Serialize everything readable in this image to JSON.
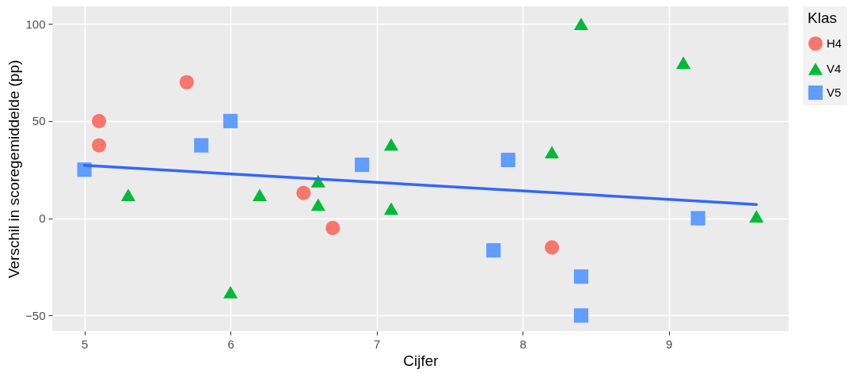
{
  "chart_data": {
    "type": "scatter",
    "xlabel": "Cijfer",
    "ylabel": "Verschil in scoregemiddelde (pp)",
    "legend_title": "Klas",
    "legend": "right",
    "grid": true,
    "xlim": [
      4.78,
      9.82
    ],
    "xticks": [
      5,
      6,
      7,
      8,
      9
    ],
    "ylim": [
      -58,
      109
    ],
    "yticks": [
      -50,
      0,
      50,
      100
    ],
    "series": [
      {
        "name": "H4",
        "type": "scatter",
        "marker": "circle",
        "color": "#f8766d",
        "x": [
          5.1,
          5.1,
          5.7,
          6.5,
          6.7,
          8.2
        ],
        "values": [
          50,
          37.5,
          70,
          13,
          -5,
          -15
        ]
      },
      {
        "name": "V4",
        "type": "scatter",
        "marker": "triangle",
        "color": "#00ba38",
        "x": [
          5.3,
          6.0,
          6.2,
          6.6,
          6.6,
          7.1,
          7.1,
          8.2,
          8.4,
          9.1,
          9.6
        ],
        "values": [
          12,
          -38,
          12,
          19,
          7,
          38,
          5,
          34,
          100,
          80,
          1
        ]
      },
      {
        "name": "V5",
        "type": "scatter",
        "marker": "square",
        "color": "#619cff",
        "x": [
          5.0,
          5.8,
          6.0,
          6.9,
          7.8,
          7.9,
          8.4,
          8.4,
          9.2
        ],
        "values": [
          25,
          37.5,
          50,
          27.5,
          -16.5,
          30,
          -30,
          -50,
          0
        ]
      },
      {
        "type": "line",
        "color": "#3366ff",
        "x": [
          5.0,
          9.6
        ],
        "values": [
          27.2,
          7.1
        ]
      }
    ]
  }
}
